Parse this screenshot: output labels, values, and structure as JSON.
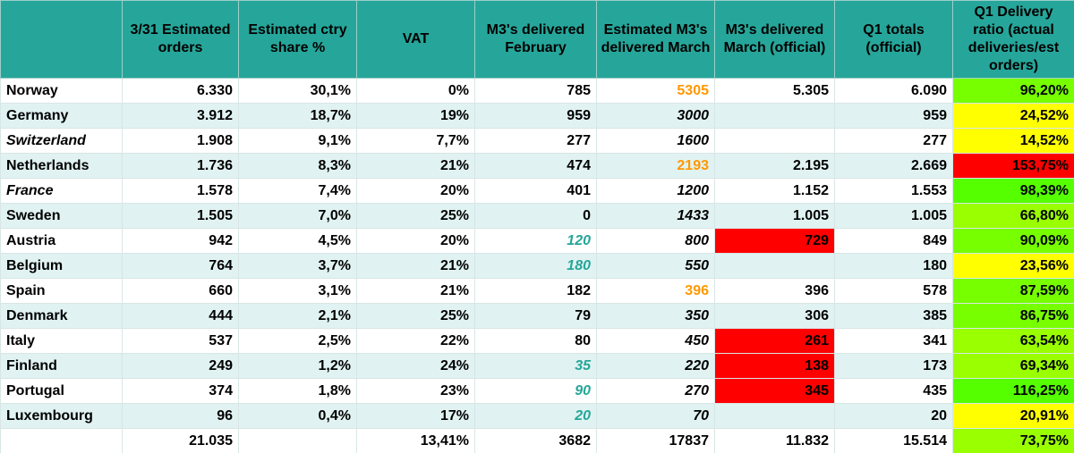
{
  "headers": [
    "",
    "3/31 Estimated orders",
    "Estimated ctry share %",
    "VAT",
    "M3's delivered February",
    "Estimated M3's delivered March",
    "M3's delivered March (official)",
    "Q1 totals (official)",
    "Q1 Delivery ratio (actual deliveries/est orders)"
  ],
  "rows": [
    {
      "country": "Norway",
      "orders": "6.330",
      "share": "30,1%",
      "vat": "0%",
      "feb": "785",
      "est_mar": "5305",
      "mar_official": "5.305",
      "q1_total": "6.090",
      "ratio": "96,20%"
    },
    {
      "country": "Germany",
      "orders": "3.912",
      "share": "18,7%",
      "vat": "19%",
      "feb": "959",
      "est_mar": "3000",
      "mar_official": "",
      "q1_total": "959",
      "ratio": "24,52%"
    },
    {
      "country": "Switzerland",
      "orders": "1.908",
      "share": "9,1%",
      "vat": "7,7%",
      "feb": "277",
      "est_mar": "1600",
      "mar_official": "",
      "q1_total": "277",
      "ratio": "14,52%"
    },
    {
      "country": "Netherlands",
      "orders": "1.736",
      "share": "8,3%",
      "vat": "21%",
      "feb": "474",
      "est_mar": "2193",
      "mar_official": "2.195",
      "q1_total": "2.669",
      "ratio": "153,75%"
    },
    {
      "country": "France",
      "orders": "1.578",
      "share": "7,4%",
      "vat": "20%",
      "feb": "401",
      "est_mar": "1200",
      "mar_official": "1.152",
      "q1_total": "1.553",
      "ratio": "98,39%"
    },
    {
      "country": "Sweden",
      "orders": "1.505",
      "share": "7,0%",
      "vat": "25%",
      "feb": "0",
      "est_mar": "1433",
      "mar_official": "1.005",
      "q1_total": "1.005",
      "ratio": "66,80%"
    },
    {
      "country": "Austria",
      "orders": "942",
      "share": "4,5%",
      "vat": "20%",
      "feb": "120",
      "est_mar": "800",
      "mar_official": "729",
      "q1_total": "849",
      "ratio": "90,09%"
    },
    {
      "country": "Belgium",
      "orders": "764",
      "share": "3,7%",
      "vat": "21%",
      "feb": "180",
      "est_mar": "550",
      "mar_official": "",
      "q1_total": "180",
      "ratio": "23,56%"
    },
    {
      "country": "Spain",
      "orders": "660",
      "share": "3,1%",
      "vat": "21%",
      "feb": "182",
      "est_mar": "396",
      "mar_official": "396",
      "q1_total": "578",
      "ratio": "87,59%"
    },
    {
      "country": "Denmark",
      "orders": "444",
      "share": "2,1%",
      "vat": "25%",
      "feb": "79",
      "est_mar": "350",
      "mar_official": "306",
      "q1_total": "385",
      "ratio": "86,75%"
    },
    {
      "country": "Italy",
      "orders": "537",
      "share": "2,5%",
      "vat": "22%",
      "feb": "80",
      "est_mar": "450",
      "mar_official": "261",
      "q1_total": "341",
      "ratio": "63,54%"
    },
    {
      "country": "Finland",
      "orders": "249",
      "share": "1,2%",
      "vat": "24%",
      "feb": "35",
      "est_mar": "220",
      "mar_official": "138",
      "q1_total": "173",
      "ratio": "69,34%"
    },
    {
      "country": "Portugal",
      "orders": "374",
      "share": "1,8%",
      "vat": "23%",
      "feb": "90",
      "est_mar": "270",
      "mar_official": "345",
      "q1_total": "435",
      "ratio": "116,25%"
    },
    {
      "country": "Luxembourg",
      "orders": "96",
      "share": "0,4%",
      "vat": "17%",
      "feb": "20",
      "est_mar": "70",
      "mar_official": "",
      "q1_total": "20",
      "ratio": "20,91%"
    }
  ],
  "totals": {
    "country": "",
    "orders": "21.035",
    "share": "",
    "vat": "13,41%",
    "feb": "3682",
    "est_mar": "17837",
    "mar_official": "11.832",
    "q1_total": "15.514",
    "ratio": "73,75%"
  },
  "colors": {
    "header_bg": "#26a69a",
    "band_bg": "#e0f2f1",
    "orange_text": "#ff9800",
    "teal_text": "#26a69a",
    "red_fill": "#ff0000",
    "green_fill": "#56ff00",
    "lime_fill": "#9aff00",
    "yellow_fill": "#ffff00"
  }
}
